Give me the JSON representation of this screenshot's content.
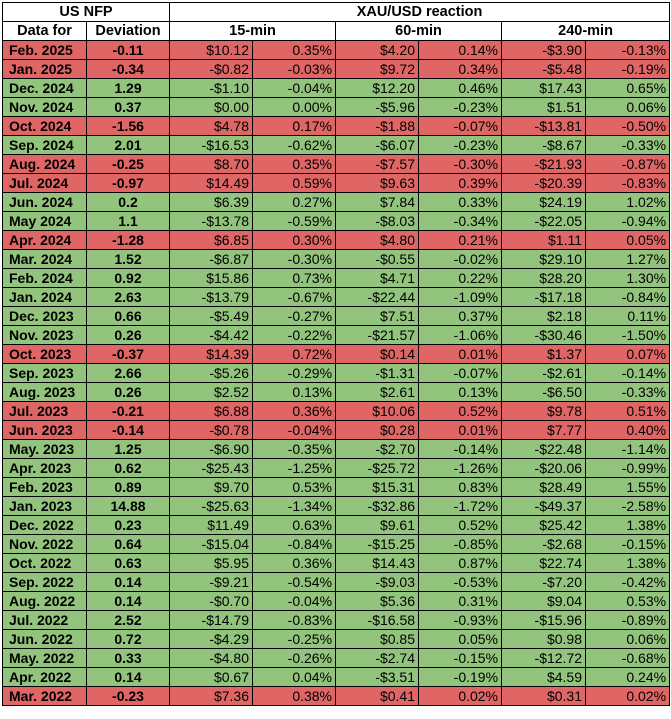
{
  "header": {
    "us_nfp": "US NFP",
    "xau_reaction": "XAU/USD reaction",
    "data_for": "Data for",
    "deviation": "Deviation",
    "m15": "15-min",
    "m60": "60-min",
    "m240": "240-min"
  },
  "colors": {
    "negative": "#e06666",
    "positive": "#93c47d"
  },
  "rows": [
    [
      "Feb. 2025",
      "-0.11",
      "$10.12",
      "0.35%",
      "$4.20",
      "0.14%",
      "-$3.90",
      "-0.13%"
    ],
    [
      "Jan. 2025",
      "-0.34",
      "-$0.82",
      "-0.03%",
      "$9.72",
      "0.34%",
      "-$5.48",
      "-0.19%"
    ],
    [
      "Dec. 2024",
      "1.29",
      "-$1.10",
      "-0.04%",
      "$12.20",
      "0.46%",
      "$17.43",
      "0.65%"
    ],
    [
      "Nov. 2024",
      "0.37",
      "$0.00",
      "0.00%",
      "-$5.96",
      "-0.23%",
      "$1.51",
      "0.06%"
    ],
    [
      "Oct. 2024",
      "-1.56",
      "$4.78",
      "0.17%",
      "-$1.88",
      "-0.07%",
      "-$13.81",
      "-0.50%"
    ],
    [
      "Sep. 2024",
      "2.01",
      "-$16.53",
      "-0.62%",
      "-$6.07",
      "-0.23%",
      "-$8.67",
      "-0.33%"
    ],
    [
      "Aug. 2024",
      "-0.25",
      "$8.70",
      "0.35%",
      "-$7.57",
      "-0.30%",
      "-$21.93",
      "-0.87%"
    ],
    [
      "Jul. 2024",
      "-0.97",
      "$14.49",
      "0.59%",
      "$9.63",
      "0.39%",
      "-$20.39",
      "-0.83%"
    ],
    [
      "Jun. 2024",
      "0.2",
      "$6.39",
      "0.27%",
      "$7.84",
      "0.33%",
      "$24.19",
      "1.02%"
    ],
    [
      "May 2024",
      "1.1",
      "-$13.78",
      "-0.59%",
      "-$8.03",
      "-0.34%",
      "-$22.05",
      "-0.94%"
    ],
    [
      "Apr. 2024",
      "-1.28",
      "$6.85",
      "0.30%",
      "$4.80",
      "0.21%",
      "$1.11",
      "0.05%"
    ],
    [
      "Mar. 2024",
      "1.52",
      "-$6.87",
      "-0.30%",
      "-$0.55",
      "-0.02%",
      "$29.10",
      "1.27%"
    ],
    [
      "Feb. 2024",
      "0.92",
      "$15.86",
      "0.73%",
      "$4.71",
      "0.22%",
      "$28.20",
      "1.30%"
    ],
    [
      "Jan. 2024",
      "2.63",
      "-$13.79",
      "-0.67%",
      "-$22.44",
      "-1.09%",
      "-$17.18",
      "-0.84%"
    ],
    [
      "Dec. 2023",
      "0.66",
      "-$5.49",
      "-0.27%",
      "$7.51",
      "0.37%",
      "$2.18",
      "0.11%"
    ],
    [
      "Nov. 2023",
      "0.26",
      "-$4.42",
      "-0.22%",
      "-$21.57",
      "-1.06%",
      "-$30.46",
      "-1.50%"
    ],
    [
      "Oct. 2023",
      "-0.37",
      "$14.39",
      "0.72%",
      "$0.14",
      "0.01%",
      "$1.37",
      "0.07%"
    ],
    [
      "Sep. 2023",
      "2.66",
      "-$5.26",
      "-0.29%",
      "-$1.31",
      "-0.07%",
      "-$2.61",
      "-0.14%"
    ],
    [
      "Aug. 2023",
      "0.26",
      "$2.52",
      "0.13%",
      "$2.61",
      "0.13%",
      "-$6.50",
      "-0.33%"
    ],
    [
      "Jul. 2023",
      "-0.21",
      "$6.88",
      "0.36%",
      "$10.06",
      "0.52%",
      "$9.78",
      "0.51%"
    ],
    [
      "Jun. 2023",
      "-0.14",
      "-$0.78",
      "-0.04%",
      "$0.28",
      "0.01%",
      "$7.77",
      "0.40%"
    ],
    [
      "May. 2023",
      "1.25",
      "-$6.90",
      "-0.35%",
      "-$2.70",
      "-0.14%",
      "-$22.48",
      "-1.14%"
    ],
    [
      "Apr. 2023",
      "0.62",
      "-$25.43",
      "-1.25%",
      "-$25.72",
      "-1.26%",
      "-$20.06",
      "-0.99%"
    ],
    [
      "Feb. 2023",
      "0.89",
      "$9.70",
      "0.53%",
      "$15.31",
      "0.83%",
      "$28.49",
      "1.55%"
    ],
    [
      "Jan. 2023",
      "14.88",
      "-$25.63",
      "-1.34%",
      "-$32.86",
      "-1.72%",
      "-$49.37",
      "-2.58%"
    ],
    [
      "Dec. 2022",
      "0.23",
      "$11.49",
      "0.63%",
      "$9.61",
      "0.52%",
      "$25.42",
      "1.38%"
    ],
    [
      "Nov. 2022",
      "0.64",
      "-$15.04",
      "-0.84%",
      "-$15.25",
      "-0.85%",
      "-$2.68",
      "-0.15%"
    ],
    [
      "Oct. 2022",
      "0.63",
      "$5.95",
      "0.36%",
      "$14.43",
      "0.87%",
      "$22.74",
      "1.38%"
    ],
    [
      "Sep. 2022",
      "0.14",
      "-$9.21",
      "-0.54%",
      "-$9.03",
      "-0.53%",
      "-$7.20",
      "-0.42%"
    ],
    [
      "Aug. 2022",
      "0.14",
      "-$0.70",
      "-0.04%",
      "$5.36",
      "0.31%",
      "$9.04",
      "0.53%"
    ],
    [
      "Jul. 2022",
      "2.52",
      "-$14.79",
      "-0.83%",
      "-$16.58",
      "-0.93%",
      "-$15.96",
      "-0.89%"
    ],
    [
      "Jun. 2022",
      "0.72",
      "-$4.29",
      "-0.25%",
      "$0.85",
      "0.05%",
      "$0.98",
      "0.06%"
    ],
    [
      "May. 2022",
      "0.33",
      "-$4.80",
      "-0.26%",
      "-$2.74",
      "-0.15%",
      "-$12.72",
      "-0.68%"
    ],
    [
      "Apr. 2022",
      "0.14",
      "$0.67",
      "0.04%",
      "-$3.51",
      "-0.19%",
      "$4.59",
      "0.24%"
    ],
    [
      "Mar. 2022",
      "-0.23",
      "$7.36",
      "0.38%",
      "$0.41",
      "0.02%",
      "$0.31",
      "0.02%"
    ]
  ]
}
